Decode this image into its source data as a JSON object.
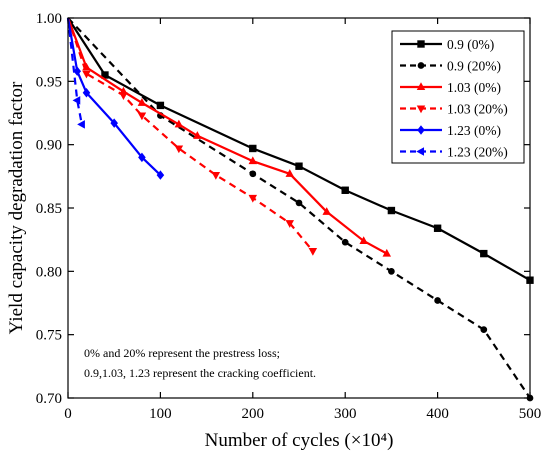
{
  "chart_data": {
    "type": "line",
    "xlabel": "Number of cycles (×10⁴)",
    "ylabel": "Yield capacity degradation factor",
    "xlim": [
      0,
      500
    ],
    "ylim": [
      0.7,
      1.0
    ],
    "xticks": [
      "0",
      "100",
      "200",
      "300",
      "400",
      "500"
    ],
    "xtick_values": [
      0,
      100,
      200,
      300,
      400,
      500
    ],
    "yticks": [
      "0.70",
      "0.75",
      "0.80",
      "0.85",
      "0.90",
      "0.95",
      "1.00"
    ],
    "ytick_values": [
      0.7,
      0.75,
      0.8,
      0.85,
      0.9,
      0.95,
      1.0
    ],
    "grid": false,
    "legend_position": "top-right",
    "annotations": [
      "0% and 20% represent the prestress loss;",
      "0.9,1.03, 1.23 represent the cracking coefficient."
    ],
    "series": [
      {
        "name": "0.9 (0%)",
        "color": "#000000",
        "dash": "solid",
        "marker": "square",
        "x": [
          0,
          40,
          100,
          200,
          250,
          300,
          350,
          400,
          450,
          500
        ],
        "y": [
          1.0,
          0.955,
          0.931,
          0.897,
          0.883,
          0.864,
          0.848,
          0.834,
          0.814,
          0.793
        ]
      },
      {
        "name": "0.9 (20%)",
        "color": "#000000",
        "dash": "dashed",
        "marker": "circle",
        "x": [
          0,
          100,
          200,
          250,
          300,
          350,
          400,
          450,
          500
        ],
        "y": [
          1.0,
          0.923,
          0.877,
          0.854,
          0.823,
          0.8,
          0.777,
          0.754,
          0.7
        ]
      },
      {
        "name": "1.03 (0%)",
        "color": "#ff0000",
        "dash": "solid",
        "marker": "triangle-up",
        "x": [
          0,
          20,
          60,
          80,
          120,
          140,
          200,
          240,
          280,
          320,
          345
        ],
        "y": [
          1.0,
          0.961,
          0.942,
          0.933,
          0.916,
          0.907,
          0.887,
          0.877,
          0.847,
          0.824,
          0.814
        ]
      },
      {
        "name": "1.03 (20%)",
        "color": "#ff0000",
        "dash": "dashed",
        "marker": "triangle-down",
        "x": [
          0,
          20,
          60,
          80,
          120,
          160,
          200,
          240,
          265
        ],
        "y": [
          1.0,
          0.956,
          0.939,
          0.923,
          0.897,
          0.876,
          0.858,
          0.838,
          0.816
        ]
      },
      {
        "name": "1.23 (0%)",
        "color": "#0000ff",
        "dash": "solid",
        "marker": "diamond",
        "x": [
          0,
          10,
          20,
          50,
          80,
          100
        ],
        "y": [
          1.0,
          0.958,
          0.941,
          0.917,
          0.89,
          0.876
        ]
      },
      {
        "name": "1.23 (20%)",
        "color": "#0000ff",
        "dash": "dashed",
        "marker": "triangle-left",
        "x": [
          0,
          10,
          15
        ],
        "y": [
          1.0,
          0.935,
          0.916
        ]
      }
    ]
  }
}
